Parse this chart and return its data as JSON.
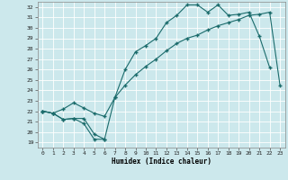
{
  "xlabel": "Humidex (Indice chaleur)",
  "background_color": "#cce8ec",
  "grid_color": "#ffffff",
  "line_color": "#1a6b6b",
  "xlim": [
    -0.5,
    23.5
  ],
  "ylim": [
    18.5,
    32.5
  ],
  "xticks": [
    0,
    1,
    2,
    3,
    4,
    5,
    6,
    7,
    8,
    9,
    10,
    11,
    12,
    13,
    14,
    15,
    16,
    17,
    18,
    19,
    20,
    21,
    22,
    23
  ],
  "yticks": [
    19,
    20,
    21,
    22,
    23,
    24,
    25,
    26,
    27,
    28,
    29,
    30,
    31,
    32
  ],
  "line1_x": [
    0,
    1,
    2,
    3,
    4,
    5,
    6,
    7,
    8,
    9,
    10,
    11,
    12,
    13,
    14,
    15,
    16,
    17,
    18,
    19,
    20,
    21,
    22,
    23
  ],
  "line1_y": [
    22.0,
    21.8,
    22.2,
    22.8,
    22.3,
    21.8,
    21.5,
    23.3,
    24.5,
    25.5,
    26.3,
    27.0,
    27.8,
    28.5,
    29.0,
    29.3,
    29.8,
    30.2,
    30.5,
    30.8,
    31.2,
    31.3,
    31.5,
    24.5
  ],
  "line2_x": [
    0,
    1,
    2,
    3,
    4,
    5,
    6,
    7,
    8,
    9,
    10,
    11,
    12,
    13,
    14,
    15,
    16,
    17,
    18,
    19,
    20,
    21,
    22,
    23
  ],
  "line2_y": [
    22.0,
    21.8,
    21.2,
    21.3,
    21.3,
    19.8,
    19.3,
    23.3,
    26.0,
    27.7,
    28.3,
    29.0,
    30.5,
    31.2,
    32.2,
    32.2,
    31.5,
    32.2,
    31.2,
    31.3,
    31.5,
    29.2,
    26.2,
    null
  ],
  "line3_x": [
    0,
    1,
    2,
    3,
    4,
    5,
    6,
    7,
    8,
    9,
    10,
    11,
    12,
    13,
    14,
    15,
    16,
    17,
    18,
    19,
    20,
    21,
    22,
    23
  ],
  "line3_y": [
    22.0,
    21.8,
    21.2,
    21.3,
    20.8,
    19.3,
    19.3,
    null,
    null,
    null,
    null,
    null,
    null,
    null,
    null,
    null,
    null,
    null,
    null,
    null,
    null,
    null,
    null,
    null
  ]
}
